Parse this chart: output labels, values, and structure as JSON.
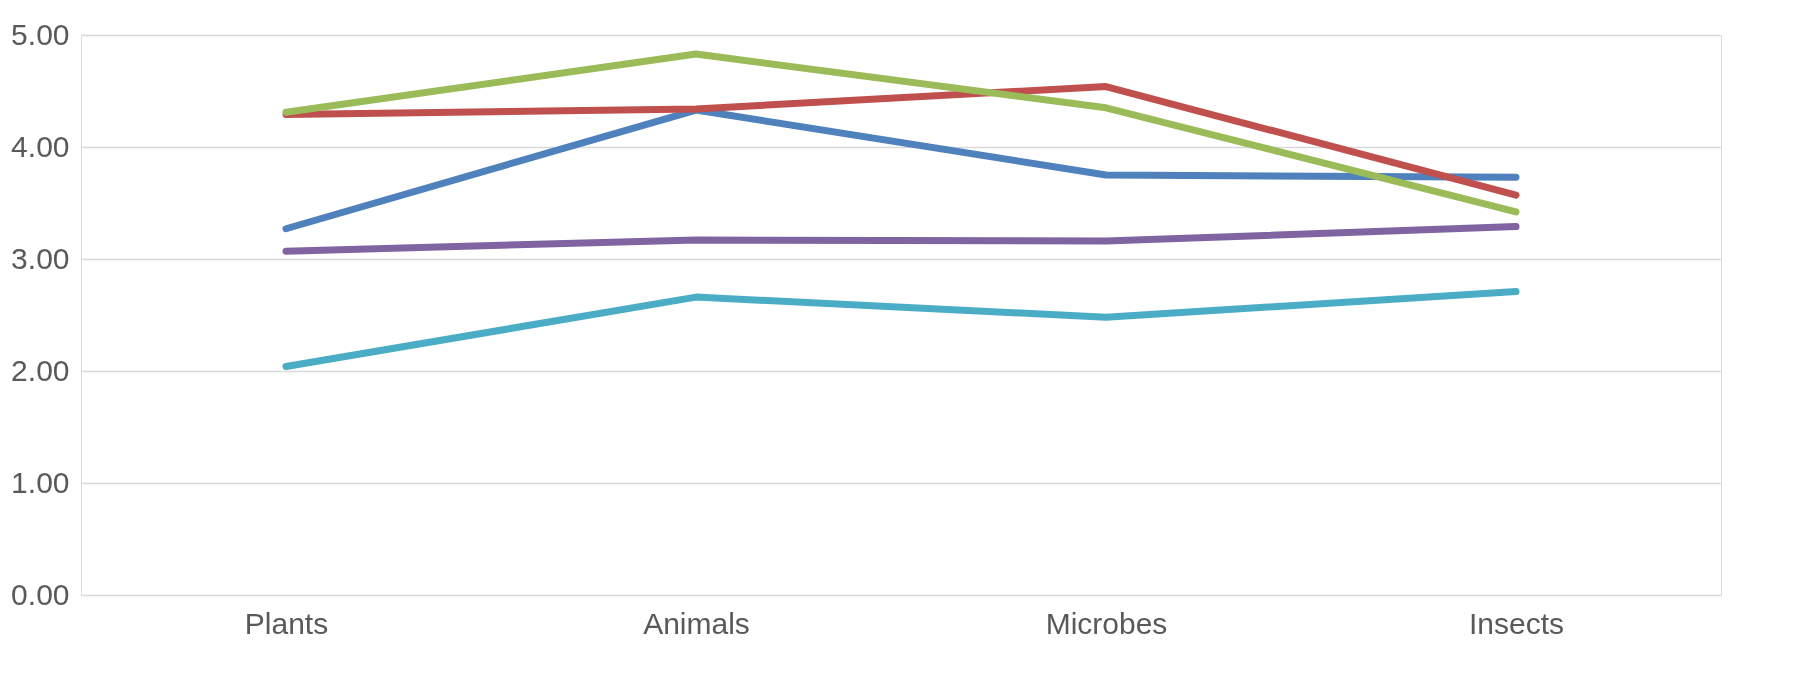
{
  "chart_data": {
    "type": "line",
    "categories": [
      "Plants",
      "Animals",
      "Microbes",
      "Insects"
    ],
    "series": [
      {
        "color": "#4f81bd",
        "values": [
          3.27,
          4.33,
          3.75,
          3.73
        ]
      },
      {
        "color": "#c0504d",
        "values": [
          4.29,
          4.34,
          4.54,
          3.57
        ]
      },
      {
        "color": "#8064a2",
        "values": [
          3.07,
          3.17,
          3.16,
          3.29
        ]
      },
      {
        "color": "#4bacc6",
        "values": [
          2.04,
          2.66,
          2.48,
          2.71
        ]
      },
      {
        "color": "#9bbb59",
        "values": [
          4.31,
          4.83,
          4.35,
          3.42
        ]
      }
    ],
    "ylim": [
      0,
      5
    ],
    "yticks": [
      {
        "value": 0,
        "label": "0.00"
      },
      {
        "value": 1,
        "label": "1.00"
      },
      {
        "value": 2,
        "label": "2.00"
      },
      {
        "value": 3,
        "label": "3.00"
      },
      {
        "value": 4,
        "label": "4.00"
      },
      {
        "value": 5,
        "label": "5.00"
      }
    ],
    "grid": "y",
    "legend": false,
    "marker": "none",
    "line_style": "solid"
  }
}
